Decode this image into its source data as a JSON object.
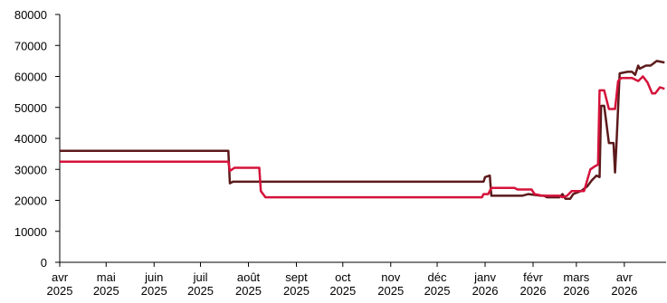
{
  "chart_data": {
    "type": "line",
    "x_kind": "date",
    "xlim": [
      "2025-04-01",
      "2026-04-28"
    ],
    "ylim": [
      0,
      80000
    ],
    "y_ticks": [
      0,
      10000,
      20000,
      30000,
      40000,
      50000,
      60000,
      70000,
      80000
    ],
    "y_tick_labels": [
      "0",
      "10000",
      "20000",
      "30000",
      "40000",
      "50000",
      "60000",
      "70000",
      "80000"
    ],
    "x_ticks": [
      "2025-04-01",
      "2025-05-01",
      "2025-06-01",
      "2025-07-01",
      "2025-08-01",
      "2025-09-01",
      "2025-10-01",
      "2025-11-01",
      "2025-12-01",
      "2026-01-01",
      "2026-02-01",
      "2026-03-01",
      "2026-04-01"
    ],
    "x_tick_labels": [
      [
        "avr",
        "2025"
      ],
      [
        "mai",
        "2025"
      ],
      [
        "juin",
        "2025"
      ],
      [
        "juil",
        "2025"
      ],
      [
        "août",
        "2025"
      ],
      [
        "sept",
        "2025"
      ],
      [
        "oct",
        "2025"
      ],
      [
        "nov",
        "2025"
      ],
      [
        "déc",
        "2025"
      ],
      [
        "janv",
        "2026"
      ],
      [
        "févr",
        "2026"
      ],
      [
        "mars",
        "2026"
      ],
      [
        "avr",
        "2026"
      ]
    ],
    "grid": false,
    "legend": "none",
    "series": [
      {
        "color": "#5c1a1b",
        "points": [
          [
            "2025-04-01",
            36000
          ],
          [
            "2025-07-19",
            36000
          ],
          [
            "2025-07-20",
            25500
          ],
          [
            "2025-07-22",
            26000
          ],
          [
            "2025-12-31",
            26000
          ],
          [
            "2026-01-01",
            27500
          ],
          [
            "2026-01-04",
            28000
          ],
          [
            "2026-01-05",
            21500
          ],
          [
            "2026-01-25",
            21500
          ],
          [
            "2026-01-29",
            22000
          ],
          [
            "2026-02-06",
            21500
          ],
          [
            "2026-02-08",
            21500
          ],
          [
            "2026-02-10",
            21000
          ],
          [
            "2026-02-18",
            21000
          ],
          [
            "2026-02-20",
            22000
          ],
          [
            "2026-02-22",
            20500
          ],
          [
            "2026-02-25",
            20500
          ],
          [
            "2026-02-27",
            22000
          ],
          [
            "2026-03-04",
            23000
          ],
          [
            "2026-03-08",
            24500
          ],
          [
            "2026-03-11",
            26500
          ],
          [
            "2026-03-14",
            28000
          ],
          [
            "2026-03-16",
            27500
          ],
          [
            "2026-03-17",
            50500
          ],
          [
            "2026-03-19",
            50500
          ],
          [
            "2026-03-22",
            38500
          ],
          [
            "2026-03-25",
            38500
          ],
          [
            "2026-03-26",
            29000
          ],
          [
            "2026-03-27",
            39000
          ],
          [
            "2026-03-29",
            61000
          ],
          [
            "2026-04-03",
            61500
          ],
          [
            "2026-04-06",
            61500
          ],
          [
            "2026-04-08",
            60500
          ],
          [
            "2026-04-10",
            63500
          ],
          [
            "2026-04-11",
            62500
          ],
          [
            "2026-04-15",
            63500
          ],
          [
            "2026-04-18",
            63500
          ],
          [
            "2026-04-22",
            65000
          ],
          [
            "2026-04-27",
            64500
          ]
        ]
      },
      {
        "color": "#d5123a",
        "points": [
          [
            "2025-04-01",
            32500
          ],
          [
            "2025-07-19",
            32500
          ],
          [
            "2025-07-20",
            29500
          ],
          [
            "2025-07-23",
            30500
          ],
          [
            "2025-08-08",
            30500
          ],
          [
            "2025-08-09",
            23000
          ],
          [
            "2025-08-12",
            21000
          ],
          [
            "2025-12-30",
            21000
          ],
          [
            "2025-12-31",
            22000
          ],
          [
            "2026-01-03",
            22000
          ],
          [
            "2026-01-05",
            24000
          ],
          [
            "2026-01-20",
            24000
          ],
          [
            "2026-01-22",
            23500
          ],
          [
            "2026-01-31",
            23500
          ],
          [
            "2026-02-02",
            22000
          ],
          [
            "2026-02-07",
            21500
          ],
          [
            "2026-02-18",
            21500
          ],
          [
            "2026-02-20",
            21000
          ],
          [
            "2026-02-23",
            21500
          ],
          [
            "2026-02-26",
            23000
          ],
          [
            "2026-03-06",
            23000
          ],
          [
            "2026-03-10",
            30000
          ],
          [
            "2026-03-13",
            31000
          ],
          [
            "2026-03-15",
            31500
          ],
          [
            "2026-03-16",
            55500
          ],
          [
            "2026-03-19",
            55500
          ],
          [
            "2026-03-22",
            49500
          ],
          [
            "2026-03-26",
            49500
          ],
          [
            "2026-03-28",
            58500
          ],
          [
            "2026-03-30",
            59500
          ],
          [
            "2026-04-06",
            59500
          ],
          [
            "2026-04-10",
            58500
          ],
          [
            "2026-04-13",
            60000
          ],
          [
            "2026-04-16",
            58000
          ],
          [
            "2026-04-19",
            54500
          ],
          [
            "2026-04-21",
            54500
          ],
          [
            "2026-04-24",
            56500
          ],
          [
            "2026-04-27",
            56000
          ]
        ]
      }
    ]
  }
}
